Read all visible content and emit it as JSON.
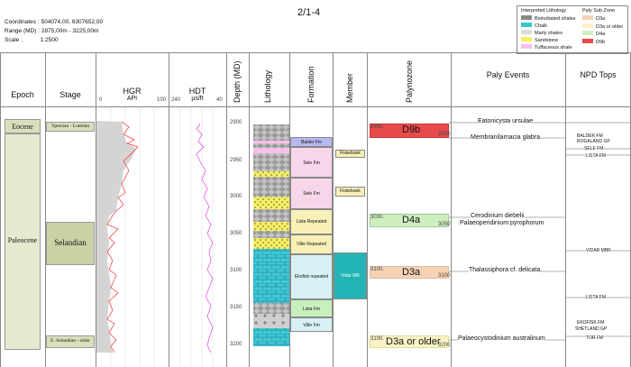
{
  "header": {
    "title": "2/1-4",
    "coords_label": "Coordinates :",
    "coords_value": "504074,00, 6307652,00",
    "range_label": "Range (MD) :",
    "range_value": "2875,00m - 3225,00m",
    "scale_label": "Scale :",
    "scale_value": "1:2500"
  },
  "legend": {
    "lith_title": "Interpreted Lithology",
    "lith_items": [
      "Bioturbated shales",
      "Chalk",
      "Marly shales",
      "Sandstone",
      "Tuffaceous shale"
    ],
    "paly_title": "Paly Sub Zone",
    "paly_items": [
      "D3a",
      "D3a or older",
      "D4a",
      "D9b"
    ],
    "colors": {
      "D3a": "#f6d2b2",
      "D3a_or_older": "#fbf3c6",
      "D4a": "#cfeec0",
      "D9b": "#e84a4a"
    }
  },
  "columns": {
    "epoch": "Epoch",
    "stage": "Stage",
    "hgr": "HGR",
    "hgr_unit": "API",
    "hgr_min": "0",
    "hgr_max": "100",
    "hdt": "HDT",
    "hdt_unit": "µs/ft",
    "hdt_min": "240",
    "hdt_max": "40",
    "depth": "Depth (MD)",
    "lithology": "Lithology",
    "formation": "Formation",
    "member": "Member",
    "palynozone": "Palynozone",
    "paly_events": "Paly Events",
    "npd_tops": "NPD Tops"
  },
  "depth_ticks": [
    "2900",
    "2950",
    "3000",
    "3050",
    "3100",
    "3150",
    "3200"
  ],
  "epochs": {
    "eocene": "Eocene",
    "paleocene": "Paleocene"
  },
  "stages": {
    "ypresian": "Ypresian - Lutetian",
    "selandian": "Selandian",
    "e_selandian": "E. Selandian - older"
  },
  "formations": [
    "Balder Fm",
    "Sele Fm",
    "Sele Fm",
    "Lista Repeated",
    "Våle Repeated",
    "Ekofisk repeated",
    "Lista Fm",
    "Våle Fm"
  ],
  "members": [
    "Fiskebank",
    "Fiskebank",
    "Vidar MB"
  ],
  "palynozones": [
    {
      "label": "D9b",
      "top": "2900.",
      "bottom": "2920."
    },
    {
      "label": "D4a",
      "top": "3030.",
      "bottom": "3050"
    },
    {
      "label": "D3a",
      "top": "3100.",
      "bottom": "3100"
    },
    {
      "label": "D3a or older",
      "top": "3190.",
      "bottom": "3200."
    }
  ],
  "paly_events": [
    "Eatonicysta ursulae",
    "Membranilarnacia glabra",
    "Cerodinium diebelii",
    "Palaeoperidinium pyrophorum",
    "Thalassiphora cf. delicata",
    "Palaeocystodinium australinum"
  ],
  "npd_tops": [
    "BALDER FM",
    "ROGALAND GP",
    "SELE FM",
    "LISTA FM",
    "VIDAR MBR",
    "LISTA FM",
    "EKOFISK FM",
    "SHETLAND GP",
    "TOR FM"
  ]
}
